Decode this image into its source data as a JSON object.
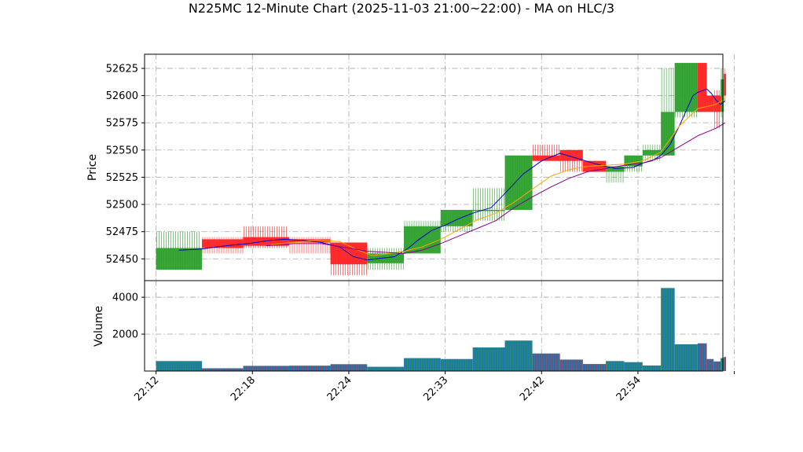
{
  "colors": {
    "up": "#2ca02c",
    "down": "#ff2222",
    "ma_fast": "#0000cc",
    "ma_mid": "#ffa500",
    "ma_slow": "#880088",
    "volume_fill": "#1f77b4",
    "volume_edge_up": "#2ca02c",
    "volume_edge_down": "#d62728",
    "grid": "#b0b0b0"
  },
  "chart_data": {
    "type": "candlestick",
    "title": "N225MC 12-Minute Chart (2025-11-03 21:00~22:00) - MA on HLC/3",
    "ylabel_price": "Price",
    "ylabel_volume": "Volume",
    "ylim_price": [
      52430,
      52638
    ],
    "ylim_volume": [
      0,
      4900
    ],
    "price_ticks": [
      52450,
      52475,
      52500,
      52525,
      52550,
      52575,
      52600,
      52625
    ],
    "volume_ticks": [
      2000,
      4000
    ],
    "volume_tick_labels": [
      "2000",
      "4000"
    ],
    "xlim": [
      -2.5,
      123.5
    ],
    "x_ticks": [
      0,
      21,
      42,
      63,
      84,
      105,
      126
    ],
    "x_tick_labels": [
      "22:12",
      "22:18",
      "22:24",
      "22:33",
      "22:42",
      "22:54",
      ""
    ],
    "grid": true,
    "candles": [
      {
        "x0": 0,
        "x1": 10,
        "o": 52440,
        "h": 52475,
        "l": 52440,
        "c": 52460,
        "v": 540
      },
      {
        "x0": 10,
        "x1": 19,
        "o": 52468,
        "h": 52470,
        "l": 52455,
        "c": 52460,
        "v": 150
      },
      {
        "x0": 19,
        "x1": 29,
        "o": 52470,
        "h": 52480,
        "l": 52460,
        "c": 52462,
        "v": 280
      },
      {
        "x0": 29,
        "x1": 38,
        "o": 52468,
        "h": 52470,
        "l": 52455,
        "c": 52465,
        "v": 290
      },
      {
        "x0": 38,
        "x1": 46,
        "o": 52465,
        "h": 52465,
        "l": 52435,
        "c": 52445,
        "v": 370
      },
      {
        "x0": 46,
        "x1": 54,
        "o": 52446,
        "h": 52460,
        "l": 52440,
        "c": 52455,
        "v": 230
      },
      {
        "x0": 54,
        "x1": 62,
        "o": 52455,
        "h": 52485,
        "l": 52455,
        "c": 52480,
        "v": 700
      },
      {
        "x0": 62,
        "x1": 69,
        "o": 52480,
        "h": 52495,
        "l": 52475,
        "c": 52495,
        "v": 650
      },
      {
        "x0": 69,
        "x1": 76,
        "o": 52495,
        "h": 52515,
        "l": 52485,
        "c": 52495,
        "v": 1280
      },
      {
        "x0": 76,
        "x1": 82,
        "o": 52495,
        "h": 52545,
        "l": 52495,
        "c": 52545,
        "v": 1650
      },
      {
        "x0": 82,
        "x1": 88,
        "o": 52545,
        "h": 52555,
        "l": 52540,
        "c": 52540,
        "v": 950
      },
      {
        "x0": 88,
        "x1": 93,
        "o": 52550,
        "h": 52550,
        "l": 52530,
        "c": 52540,
        "v": 620
      },
      {
        "x0": 93,
        "x1": 98,
        "o": 52540,
        "h": 52540,
        "l": 52530,
        "c": 52530,
        "v": 380
      },
      {
        "x0": 98,
        "x1": 102,
        "o": 52530,
        "h": 52535,
        "l": 52520,
        "c": 52535,
        "v": 540
      },
      {
        "x0": 102,
        "x1": 106,
        "o": 52535,
        "h": 52545,
        "l": 52530,
        "c": 52545,
        "v": 480
      },
      {
        "x0": 106,
        "x1": 110,
        "o": 52545,
        "h": 52555,
        "l": 52540,
        "c": 52550,
        "v": 300
      },
      {
        "x0": 110,
        "x1": 113,
        "o": 52545,
        "h": 52625,
        "l": 52545,
        "c": 52585,
        "v": 4500
      },
      {
        "x0": 113,
        "x1": 118,
        "o": 52585,
        "h": 52630,
        "l": 52580,
        "c": 52630,
        "v": 1450
      },
      {
        "x0": 118,
        "x1": 120,
        "o": 52630,
        "h": 52630,
        "l": 52585,
        "c": 52585,
        "v": 1500
      },
      {
        "x0": 120,
        "x1": 121.5,
        "o": 52600,
        "h": 52600,
        "l": 52585,
        "c": 52585,
        "v": 650
      },
      {
        "x0": 121.5,
        "x1": 123,
        "o": 52600,
        "h": 52605,
        "l": 52570,
        "c": 52585,
        "v": 520
      },
      {
        "x0": 123,
        "x1": 123.7,
        "o": 52585,
        "h": 52625,
        "l": 52580,
        "c": 52615,
        "v": 700
      },
      {
        "x0": 123.7,
        "x1": 124.2,
        "o": 52620,
        "h": 52625,
        "l": 52595,
        "c": 52600,
        "v": 760
      }
    ],
    "series": [
      {
        "color_key": "ma_fast",
        "x": [
          5,
          10,
          15,
          20,
          25,
          28,
          32,
          36,
          40,
          43,
          46,
          48,
          52,
          55,
          57,
          60,
          63,
          66,
          69,
          73,
          76,
          80,
          84,
          88,
          92,
          96,
          100,
          104,
          106,
          108,
          110,
          112,
          114,
          117,
          118,
          120,
          121,
          122,
          123,
          124
        ],
        "y": [
          52458,
          52459,
          52462,
          52464,
          52467,
          52468,
          52467,
          52465,
          52461,
          52452,
          52449,
          52450,
          52452,
          52460,
          52467,
          52476,
          52481,
          52487,
          52492,
          52497,
          52510,
          52528,
          52540,
          52547,
          52542,
          52537,
          52533,
          52534,
          52538,
          52540,
          52545,
          52555,
          52572,
          52600,
          52603,
          52606,
          52602,
          52596,
          52592,
          52595
        ]
      },
      {
        "color_key": "ma_mid",
        "x": [
          25,
          30,
          35,
          40,
          44,
          47,
          51,
          54,
          58,
          62,
          66,
          70,
          74,
          78,
          82,
          86,
          90,
          94,
          98,
          102,
          106,
          110,
          114,
          116,
          118,
          120,
          122,
          124
        ],
        "y": [
          52463,
          52465,
          52467,
          52466,
          52458,
          52453,
          52455,
          52457,
          52461,
          52468,
          52477,
          52486,
          52492,
          52502,
          52514,
          52526,
          52532,
          52535,
          52536,
          52537,
          52540,
          52548,
          52572,
          52580,
          52588,
          52590,
          52592,
          52597
        ]
      },
      {
        "color_key": "ma_slow",
        "x": [
          24,
          30,
          36,
          42,
          46,
          50,
          54,
          58,
          62,
          66,
          70,
          74,
          78,
          82,
          86,
          90,
          94,
          98,
          102,
          106,
          110,
          114,
          118,
          122,
          124
        ],
        "y": [
          52462,
          52464,
          52464,
          52460,
          52457,
          52456,
          52455,
          52458,
          52464,
          52471,
          52478,
          52485,
          52497,
          52507,
          52516,
          52524,
          52530,
          52533,
          52536,
          52538,
          52543,
          52553,
          52563,
          52570,
          52575
        ]
      }
    ]
  }
}
